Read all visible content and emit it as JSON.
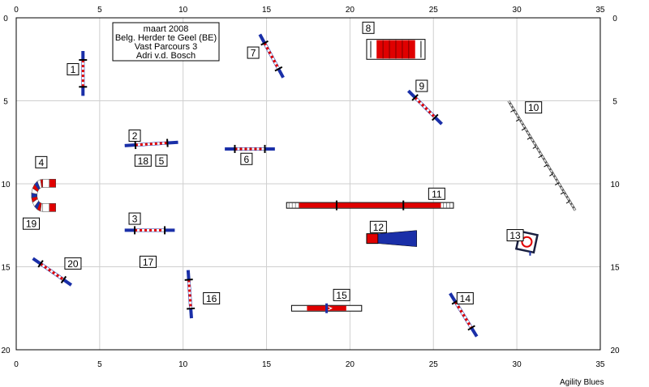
{
  "course": {
    "info_lines": [
      "maart 2008",
      "Belg. Herder te Geel (BE)",
      "Vast Parcours 3",
      "Adri v.d. Bosch"
    ],
    "credit": "Agility Blues",
    "x_ticks": [
      "0",
      "5",
      "10",
      "15",
      "20",
      "25",
      "30",
      "35"
    ],
    "y_ticks": [
      "0",
      "5",
      "10",
      "15",
      "20"
    ],
    "x_range": [
      0,
      35
    ],
    "y_range": [
      0,
      20
    ]
  },
  "obstacles": [
    {
      "id": "1",
      "label": "1",
      "type": "jump",
      "x1": 4.0,
      "y1": 2.0,
      "x2": 4.0,
      "y2": 4.7
    },
    {
      "id": "2",
      "label": "2",
      "type": "jump",
      "x1": 6.5,
      "y1": 7.7,
      "x2": 9.7,
      "y2": 7.5
    },
    {
      "id": "3",
      "label": "3",
      "type": "jump",
      "x1": 6.5,
      "y1": 12.8,
      "x2": 9.5,
      "y2": 12.8
    },
    {
      "id": "4",
      "label": "4",
      "type": "tunnel",
      "x": 1.2,
      "y": 10.7
    },
    {
      "id": "6",
      "label": "6",
      "type": "jump",
      "x1": 12.5,
      "y1": 7.9,
      "x2": 15.5,
      "y2": 7.9
    },
    {
      "id": "7",
      "label": "7",
      "type": "jump",
      "x1": 14.6,
      "y1": 1.0,
      "x2": 16.0,
      "y2": 3.6
    },
    {
      "id": "8",
      "label": "8",
      "type": "tire",
      "x1": 21.0,
      "y1": 1.3,
      "x2": 24.5,
      "y2": 2.5
    },
    {
      "id": "9",
      "label": "9",
      "type": "jump",
      "x1": 23.5,
      "y1": 4.4,
      "x2": 25.5,
      "y2": 6.4
    },
    {
      "id": "10",
      "label": "10",
      "type": "weave",
      "x1": 29.5,
      "y1": 5.0,
      "x2": 33.5,
      "y2": 11.6
    },
    {
      "id": "11",
      "label": "11",
      "type": "walk",
      "x1": 16.2,
      "y1": 11.3,
      "x2": 26.2,
      "y2": 11.3
    },
    {
      "id": "12",
      "label": "12",
      "type": "chute",
      "x1": 21.0,
      "y1": 13.3,
      "x2": 24.0,
      "y2": 13.3
    },
    {
      "id": "13",
      "label": "13",
      "type": "table",
      "x": 30.6,
      "y": 13.5
    },
    {
      "id": "14",
      "label": "14",
      "type": "jump",
      "x1": 26.0,
      "y1": 16.6,
      "x2": 27.6,
      "y2": 19.2
    },
    {
      "id": "15",
      "label": "15",
      "type": "seesaw",
      "x1": 16.5,
      "y1": 17.5,
      "x2": 20.7,
      "y2": 17.5
    },
    {
      "id": "16",
      "label": "16",
      "type": "jump",
      "x1": 10.3,
      "y1": 15.2,
      "x2": 10.5,
      "y2": 18.1
    },
    {
      "id": "20",
      "label": "20",
      "type": "jump",
      "x1": 1.0,
      "y1": 14.5,
      "x2": 3.3,
      "y2": 16.1
    }
  ],
  "labels": [
    {
      "text": "1",
      "x": 3.4,
      "y": 3.1
    },
    {
      "text": "2",
      "x": 7.1,
      "y": 7.1
    },
    {
      "text": "18",
      "x": 7.6,
      "y": 8.6
    },
    {
      "text": "5",
      "x": 8.7,
      "y": 8.6
    },
    {
      "text": "3",
      "x": 7.1,
      "y": 12.1
    },
    {
      "text": "17",
      "x": 7.9,
      "y": 14.7
    },
    {
      "text": "4",
      "x": 1.5,
      "y": 8.7
    },
    {
      "text": "19",
      "x": 0.9,
      "y": 12.4
    },
    {
      "text": "6",
      "x": 13.8,
      "y": 8.5
    },
    {
      "text": "7",
      "x": 14.2,
      "y": 2.1
    },
    {
      "text": "8",
      "x": 21.1,
      "y": 0.6
    },
    {
      "text": "9",
      "x": 24.3,
      "y": 4.1
    },
    {
      "text": "10",
      "x": 31.0,
      "y": 5.4
    },
    {
      "text": "11",
      "x": 25.2,
      "y": 10.6
    },
    {
      "text": "12",
      "x": 21.7,
      "y": 12.6
    },
    {
      "text": "13",
      "x": 29.9,
      "y": 13.1
    },
    {
      "text": "14",
      "x": 26.9,
      "y": 16.9
    },
    {
      "text": "15",
      "x": 19.5,
      "y": 16.7
    },
    {
      "text": "16",
      "x": 11.7,
      "y": 16.9
    },
    {
      "text": "20",
      "x": 3.4,
      "y": 14.8
    }
  ]
}
